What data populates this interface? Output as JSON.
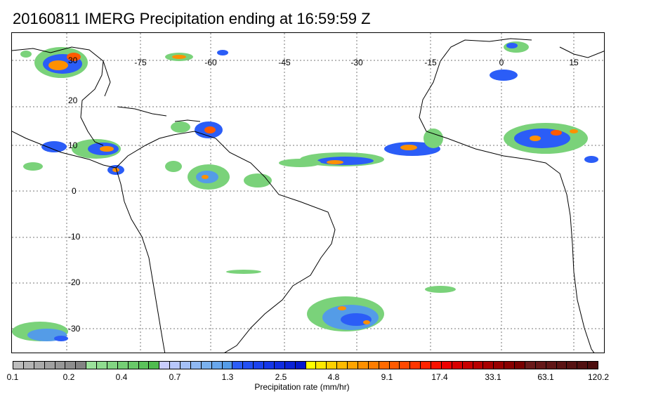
{
  "title": "20160811 IMERG Precipitation ending at 16:59:59 Z",
  "map": {
    "lon_range": [
      -100,
      20
    ],
    "lat_range": [
      -38,
      38
    ],
    "lon_ticks": [
      "-75",
      "-60",
      "-45",
      "-30",
      "-15",
      "0",
      "15"
    ],
    "lat_ticks": [
      "30",
      "20",
      "10",
      "0",
      "-10",
      "-20",
      "-30"
    ],
    "grid": true,
    "coastline_color": "#000000"
  },
  "colorbar": {
    "label": "Precipitation rate (mm/hr)",
    "tick_labels": [
      "0.1",
      "0.2",
      "0.4",
      "0.7",
      "1.3",
      "2.5",
      "4.8",
      "9.1",
      "17.4",
      "33.1",
      "63.1",
      "120.2"
    ],
    "colors": [
      "#bdbdbd",
      "#b4b4b4",
      "#aaaaaa",
      "#a1a1a1",
      "#979797",
      "#8d8d8d",
      "#838383",
      "#9be29b",
      "#8fdc8f",
      "#82d582",
      "#75cf75",
      "#69c869",
      "#5cc25c",
      "#50bc50",
      "#c9cdfd",
      "#b8c7fb",
      "#a4c0f7",
      "#8fb8f2",
      "#7ab1ee",
      "#68a7ec",
      "#549ce7",
      "#2b5df7",
      "#2350f3",
      "#1c43ee",
      "#1537e8",
      "#0f2ce0",
      "#0a22d6",
      "#0418cc",
      "#ffff00",
      "#ffe800",
      "#ffd000",
      "#ffba00",
      "#ffa400",
      "#ff9000",
      "#ff7d00",
      "#ff6a00",
      "#ff5a00",
      "#ff4800",
      "#ff3600",
      "#ff2400",
      "#f91200",
      "#ee0000",
      "#d80000",
      "#c80000",
      "#b80000",
      "#a80000",
      "#980000",
      "#880000",
      "#780000",
      "#6a1a1a",
      "#651818",
      "#601616",
      "#5b1414",
      "#561212",
      "#511010",
      "#4c0e0e"
    ]
  }
}
